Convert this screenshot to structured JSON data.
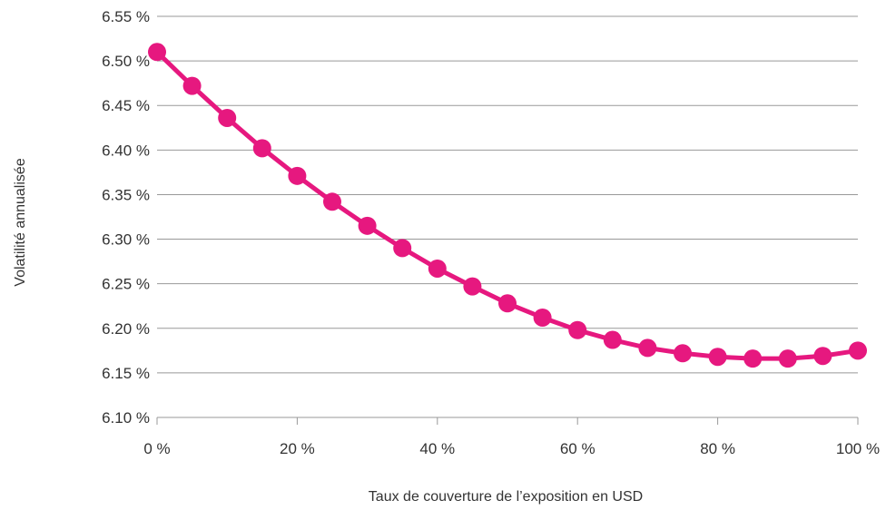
{
  "chart_data": {
    "type": "line",
    "title": "",
    "xlabel": "Taux de couverture de l’exposition en USD",
    "ylabel": "Volatilité annualisée",
    "x": [
      0,
      5,
      10,
      15,
      20,
      25,
      30,
      35,
      40,
      45,
      50,
      55,
      60,
      65,
      70,
      75,
      80,
      85,
      90,
      95,
      100
    ],
    "series": [
      {
        "values": [
          6.51,
          6.472,
          6.436,
          6.402,
          6.371,
          6.342,
          6.315,
          6.29,
          6.267,
          6.247,
          6.228,
          6.212,
          6.198,
          6.187,
          6.178,
          6.172,
          6.168,
          6.166,
          6.166,
          6.169,
          6.175
        ],
        "color": "#e6187f"
      }
    ],
    "xlim": [
      0,
      100
    ],
    "ylim": [
      6.1,
      6.55
    ],
    "x_ticks": [
      0,
      20,
      40,
      60,
      80,
      100
    ],
    "x_tick_labels": [
      "0 %",
      "20 %",
      "40 %",
      "60 %",
      "80 %",
      "100 %"
    ],
    "y_ticks": [
      6.1,
      6.15,
      6.2,
      6.25,
      6.3,
      6.35,
      6.4,
      6.45,
      6.5,
      6.55
    ],
    "y_tick_labels": [
      "6.10 %",
      "6.15 %",
      "6.20 %",
      "6.25 %",
      "6.30 %",
      "6.35 %",
      "6.40 %",
      "6.45 %",
      "6.50 %",
      "6.55 %"
    ],
    "grid": "horizontal",
    "legend": "none",
    "gridline_color": "#999999"
  }
}
